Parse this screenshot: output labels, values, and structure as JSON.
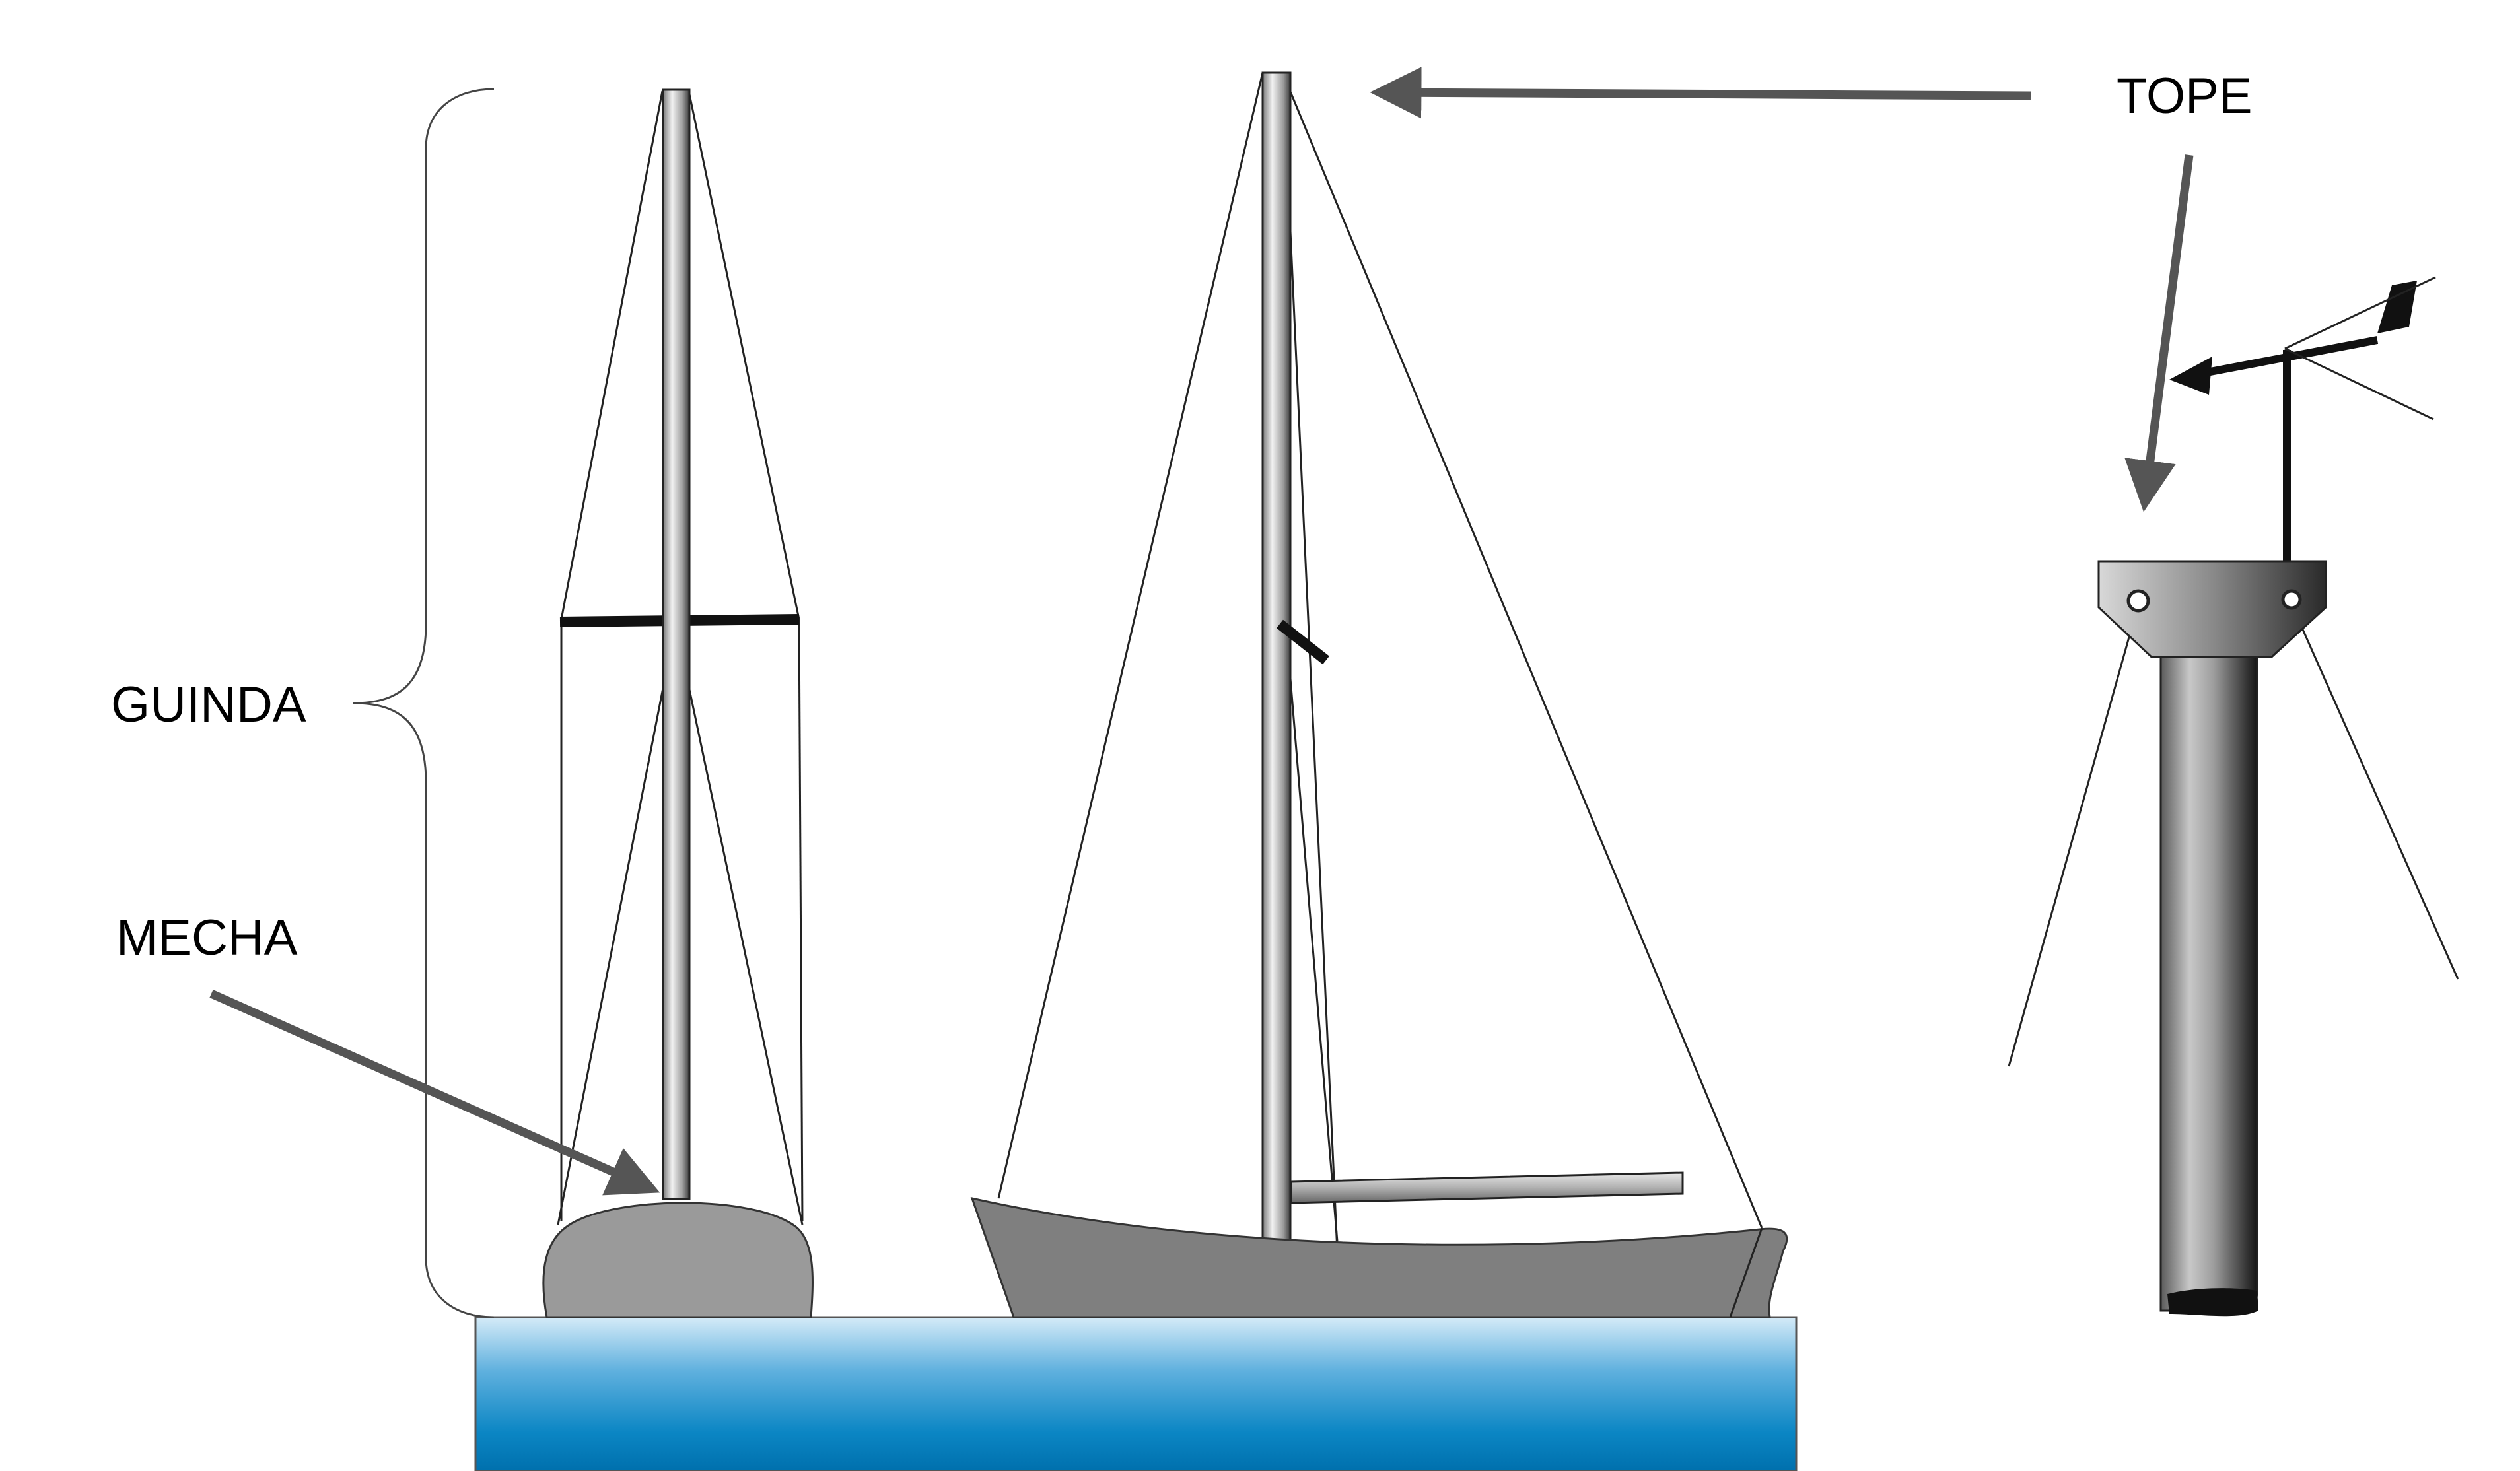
{
  "labels": {
    "guinda": "GUINDA",
    "mecha": "MECHA",
    "tope": "TOPE"
  },
  "colors": {
    "hull_side_view": "#9a9a9a",
    "hull_sailboat": "#7f7f7f",
    "arrow": "#555555",
    "rigging": "#222222",
    "water_top": "#c6e1f4",
    "water_bottom": "#0075b4"
  }
}
